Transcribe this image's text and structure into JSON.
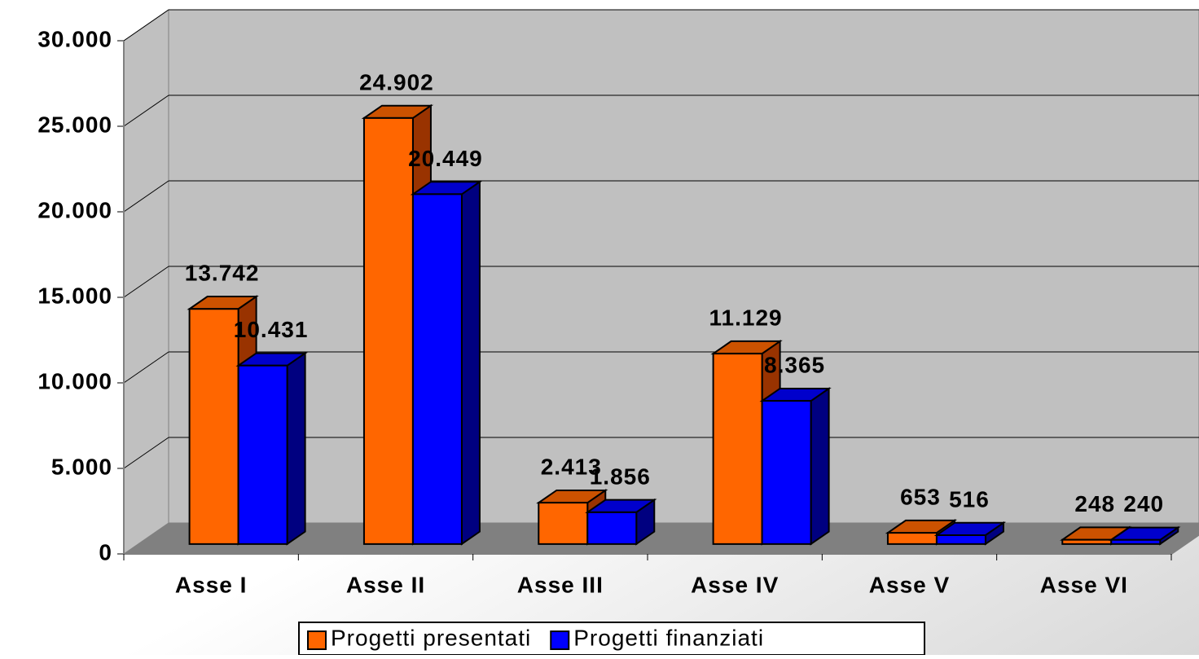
{
  "chart_data": {
    "type": "bar3d",
    "categories": [
      "Asse I",
      "Asse II",
      "Asse III",
      "Asse IV",
      "Asse V",
      "Asse VI"
    ],
    "series": [
      {
        "name": "Progetti presentati",
        "color": "#ff6600",
        "side": "#993300",
        "top": "#cc5200",
        "values": [
          13742,
          24902,
          2413,
          11129,
          653,
          248
        ],
        "value_labels": [
          "13.742",
          "24.902",
          "2.413",
          "11.129",
          "653",
          "248"
        ]
      },
      {
        "name": "Progetti finanziati",
        "color": "#0000ff",
        "side": "#000080",
        "top": "#0000cc",
        "values": [
          10431,
          20449,
          1856,
          8365,
          516,
          240
        ],
        "value_labels": [
          "10.431",
          "20.449",
          "1.856",
          "8.365",
          "516",
          "240"
        ]
      }
    ],
    "ylim": [
      0,
      30000
    ],
    "yticks": [
      0,
      {
        "value": 5000,
        "label": "5.000"
      },
      {
        "value": 10000,
        "label": "10.000"
      },
      {
        "value": 15000,
        "label": "15.000"
      },
      {
        "value": 20000,
        "label": "20.000"
      },
      {
        "value": 25000,
        "label": "25.000"
      },
      {
        "value": 30000,
        "label": "30.000"
      }
    ],
    "grid": true,
    "legend": "bottom"
  }
}
